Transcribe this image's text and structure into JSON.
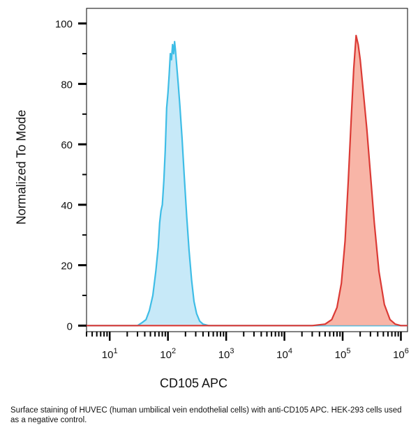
{
  "chart_data": {
    "type": "area",
    "title": "",
    "xlabel": "CD105 APC",
    "ylabel": "Normalized To Mode",
    "x_scale": "log",
    "xlim": [
      4,
      1300000
    ],
    "ylim": [
      -2,
      105
    ],
    "x_ticks": [
      {
        "base": "10",
        "exp": "1",
        "value": 10
      },
      {
        "base": "10",
        "exp": "2",
        "value": 100
      },
      {
        "base": "10",
        "exp": "3",
        "value": 1000
      },
      {
        "base": "10",
        "exp": "4",
        "value": 10000
      },
      {
        "base": "10",
        "exp": "5",
        "value": 100000
      },
      {
        "base": "10",
        "exp": "6",
        "value": 1000000
      }
    ],
    "y_ticks": [
      0,
      20,
      40,
      60,
      80,
      100
    ],
    "grid": false,
    "legend": "none",
    "series": [
      {
        "color": "#3EBDE6",
        "fill": "#BDE5F7",
        "points": [
          [
            4,
            0
          ],
          [
            30,
            0
          ],
          [
            36,
            1
          ],
          [
            42,
            2
          ],
          [
            48,
            5
          ],
          [
            55,
            10
          ],
          [
            62,
            18
          ],
          [
            68,
            26
          ],
          [
            72,
            34
          ],
          [
            76,
            38
          ],
          [
            80,
            40
          ],
          [
            85,
            48
          ],
          [
            90,
            58
          ],
          [
            95,
            72
          ],
          [
            100,
            77
          ],
          [
            105,
            83
          ],
          [
            110,
            90
          ],
          [
            115,
            88
          ],
          [
            120,
            93
          ],
          [
            125,
            90
          ],
          [
            130,
            94
          ],
          [
            135,
            91
          ],
          [
            140,
            87
          ],
          [
            150,
            80
          ],
          [
            160,
            73
          ],
          [
            175,
            62
          ],
          [
            190,
            50
          ],
          [
            210,
            36
          ],
          [
            230,
            25
          ],
          [
            255,
            15
          ],
          [
            280,
            8
          ],
          [
            310,
            4
          ],
          [
            350,
            1.5
          ],
          [
            400,
            0.5
          ],
          [
            500,
            0
          ],
          [
            1300000,
            0
          ]
        ]
      },
      {
        "color": "#DB3A35",
        "fill": "#F7A898",
        "points": [
          [
            4,
            0
          ],
          [
            30000,
            0
          ],
          [
            50000,
            0.5
          ],
          [
            65000,
            2
          ],
          [
            80000,
            6
          ],
          [
            95000,
            14
          ],
          [
            110000,
            28
          ],
          [
            125000,
            48
          ],
          [
            140000,
            68
          ],
          [
            155000,
            85
          ],
          [
            170000,
            96
          ],
          [
            185000,
            93
          ],
          [
            200000,
            88
          ],
          [
            230000,
            76
          ],
          [
            260000,
            65
          ],
          [
            300000,
            50
          ],
          [
            350000,
            34
          ],
          [
            420000,
            18
          ],
          [
            520000,
            7
          ],
          [
            650000,
            2
          ],
          [
            800000,
            0.5
          ],
          [
            1000000,
            0
          ],
          [
            1300000,
            0
          ]
        ]
      }
    ]
  },
  "caption": "Surface staining of HUVEC (human umbilical vein endothelial cells) with anti-CD105 APC. HEK-293 cells used as a negative control."
}
